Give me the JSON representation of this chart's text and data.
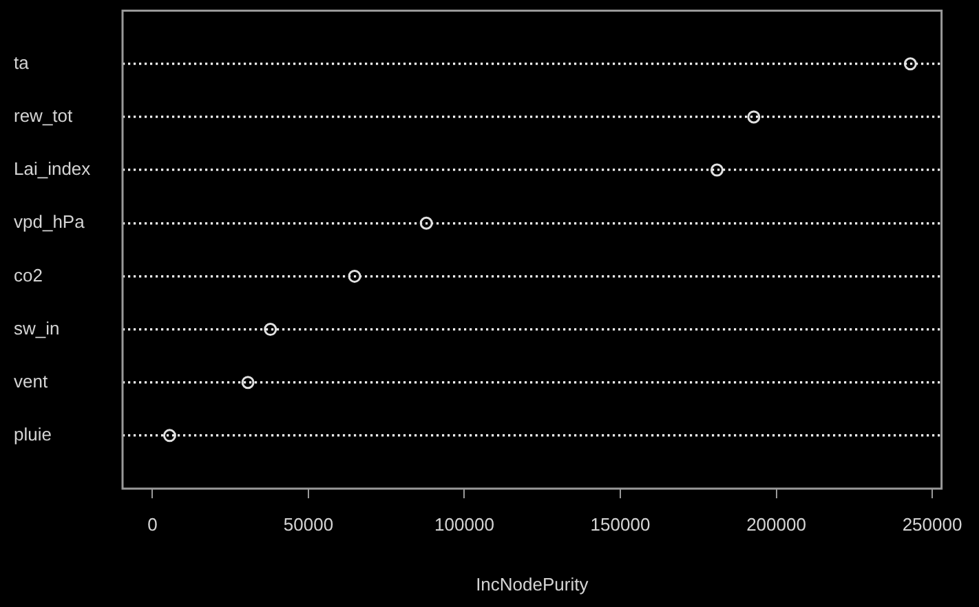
{
  "chart_data": {
    "type": "scatter",
    "orientation": "horizontal",
    "xlabel": "IncNodePurity",
    "categories": [
      "ta",
      "rew_tot",
      "Lai_index",
      "vpd_hPa",
      "co2",
      "sw_in",
      "vent",
      "pluie"
    ],
    "values": [
      243000,
      192800,
      181000,
      87800,
      64800,
      37800,
      30600,
      5500
    ],
    "color": "#e0e0e0",
    "marker": "circle",
    "grid": "y",
    "xlim": [
      -9600,
      253000
    ],
    "xticks": [
      0,
      50000,
      100000,
      150000,
      200000,
      250000
    ]
  }
}
